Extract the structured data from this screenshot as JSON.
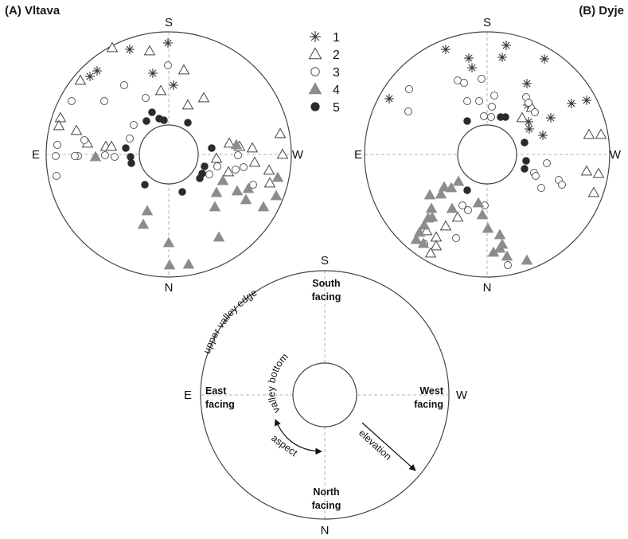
{
  "panel_a": {
    "title": "(A) Vltava",
    "directions": {
      "top": "S",
      "bottom": "N",
      "left": "E",
      "right": "W"
    }
  },
  "panel_b": {
    "title": "(B) Dyje",
    "directions": {
      "top": "S",
      "bottom": "N",
      "left": "E",
      "right": "W"
    }
  },
  "legend": [
    {
      "label": "1",
      "symbol": "asterisk"
    },
    {
      "label": "2",
      "symbol": "open-triangle"
    },
    {
      "label": "3",
      "symbol": "open-circle"
    },
    {
      "label": "4",
      "symbol": "filled-triangle"
    },
    {
      "label": "5",
      "symbol": "filled-circle"
    }
  ],
  "key_panel": {
    "directions": {
      "top": "S",
      "bottom": "N",
      "left": "E",
      "right": "W"
    },
    "south_line1": "South",
    "south_line2": "facing",
    "north_line1": "North",
    "north_line2": "facing",
    "east_line1": "East",
    "east_line2": "facing",
    "west_line1": "West",
    "west_line2": "facing",
    "upper_valley_edge": "upper valley edge",
    "valley_bottom": "valley bottom",
    "aspect": "aspect",
    "elevation": "elevation"
  },
  "colors": {
    "filled_triangle": "#8c8c8c",
    "filled_circle": "#2b2b2b",
    "line": "#444444",
    "axis": "#b5b5b5"
  }
}
